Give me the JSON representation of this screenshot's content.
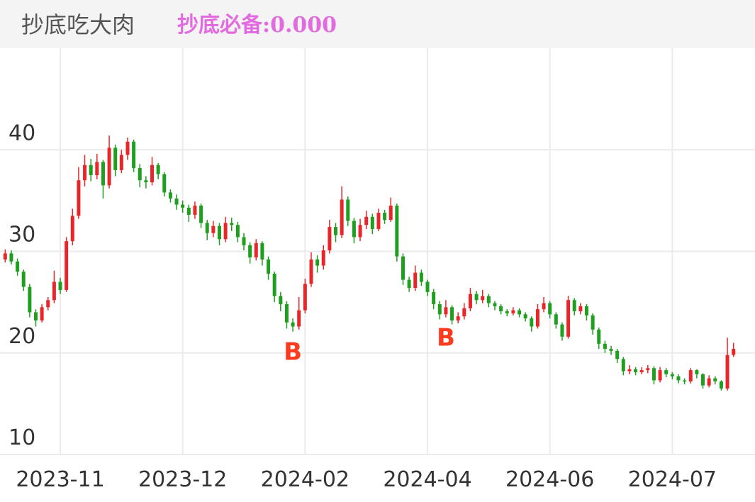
{
  "chart_data": {
    "type": "candlestick",
    "title": "抄底吃大肉",
    "indicator": "抄底必备:0.000",
    "categories": [
      null,
      null,
      null,
      null,
      null,
      null,
      null,
      null,
      null,
      "2023-11",
      null,
      null,
      null,
      null,
      null,
      null,
      null,
      null,
      null,
      null,
      null,
      null,
      null,
      null,
      null,
      null,
      null,
      null,
      null,
      "2023-12",
      null,
      null,
      null,
      null,
      null,
      null,
      null,
      null,
      null,
      null,
      null,
      null,
      null,
      null,
      null,
      null,
      null,
      null,
      null,
      "2024-02",
      null,
      null,
      null,
      null,
      null,
      null,
      null,
      null,
      null,
      null,
      null,
      null,
      null,
      null,
      null,
      null,
      null,
      null,
      null,
      "2024-04",
      null,
      null,
      null,
      null,
      null,
      null,
      null,
      null,
      null,
      null,
      null,
      null,
      null,
      null,
      null,
      null,
      null,
      null,
      null,
      "2024-06",
      null,
      null,
      null,
      null,
      null,
      null,
      null,
      null,
      null,
      null,
      null,
      null,
      null,
      null,
      null,
      null,
      null,
      null,
      null,
      "2024-07",
      null,
      null,
      null,
      null,
      null,
      null,
      null,
      null,
      null,
      null
    ],
    "open": [
      29.2,
      29.8,
      29,
      28,
      26.5,
      24,
      23.2,
      24.5,
      25.2,
      27,
      26.2,
      31,
      33.5,
      37,
      38.5,
      37.5,
      38.8,
      36.5,
      40.2,
      38,
      39.5,
      40.8,
      38.2,
      37,
      36.8,
      38.5,
      37.6,
      35.8,
      35.2,
      34.6,
      34.3,
      33.6,
      34.5,
      32.8,
      31.8,
      32.5,
      31.2,
      32.8,
      32.6,
      31.4,
      30.6,
      29.4,
      30.8,
      29.2,
      27.8,
      25.6,
      24.8,
      23,
      22.6,
      24.2,
      26.8,
      29.2,
      28.6,
      30.1,
      32.4,
      31.6,
      35.1,
      33,
      31.4,
      32.6,
      33.4,
      32.2,
      33.8,
      33.1,
      34.5,
      29.5,
      27.2,
      26.4,
      27.9,
      27,
      26,
      24.8,
      23.8,
      24.5,
      23.2,
      23.6,
      24.4,
      25.8,
      25.2,
      25.6,
      24.9,
      24.6,
      24.1,
      23.9,
      24.2,
      23.8,
      23.4,
      22.6,
      24.3,
      24.9,
      23.8,
      22.8,
      21.6,
      25.2,
      24.1,
      24.6,
      23.7,
      22.3,
      20.9,
      20.4,
      20.2,
      19.4,
      18.2,
      18.4,
      18.1,
      18.3,
      18.5,
      17.3,
      18.3,
      17.9,
      17.7,
      17.3,
      17.2,
      18.3,
      17.9,
      16.8,
      17.5,
      17.2,
      16.5,
      19.8
    ],
    "high": [
      30.2,
      30.1,
      29.3,
      28.2,
      26.8,
      24.3,
      24.8,
      25.5,
      28.1,
      27.4,
      31.4,
      34.2,
      38.3,
      39.5,
      39.1,
      39.6,
      39,
      41.4,
      40.5,
      40,
      41.2,
      41,
      38.6,
      37.4,
      39.3,
      38.7,
      37.8,
      36.1,
      35.6,
      35,
      34.6,
      34.9,
      34.7,
      33.1,
      33,
      32.8,
      33.4,
      33.3,
      32.9,
      31.8,
      30.9,
      31.2,
      31,
      29.5,
      28,
      26,
      25.1,
      23.4,
      25.5,
      27.3,
      29.9,
      29.6,
      30.6,
      33.1,
      32.8,
      36.4,
      35.4,
      33.3,
      33.2,
      34,
      33.7,
      34.2,
      34.1,
      35.3,
      34.7,
      29.8,
      27.5,
      28.6,
      28.2,
      27.2,
      26.3,
      25.1,
      25.2,
      24.7,
      24,
      24.9,
      26.4,
      26.1,
      26.2,
      25.8,
      25.1,
      24.8,
      24.3,
      24.5,
      24.4,
      24,
      23.6,
      24.8,
      25.5,
      25.1,
      24,
      23,
      25.6,
      25.4,
      24.9,
      24.8,
      23.9,
      22.5,
      21.2,
      20.7,
      20.4,
      19.6,
      18.8,
      18.6,
      18.6,
      18.8,
      18.7,
      18.6,
      18.5,
      18.1,
      17.9,
      17.5,
      18.5,
      18.4,
      18,
      17.8,
      17.7,
      17.3,
      21.5,
      21
    ],
    "low": [
      28.9,
      28.7,
      27.6,
      26.1,
      23.5,
      22.6,
      23,
      24.2,
      24.9,
      25.8,
      26,
      30.6,
      33.2,
      36.4,
      36.9,
      37.1,
      35.2,
      36.2,
      37.4,
      37.7,
      39,
      37.8,
      36.3,
      36.2,
      36.5,
      37.1,
      35.4,
      34.8,
      34.1,
      33.8,
      32.9,
      33.2,
      32.3,
      31.1,
      31.4,
      30.6,
      30.9,
      32,
      30.9,
      30.1,
      28.8,
      29.1,
      28.6,
      27.2,
      25,
      24.1,
      22.4,
      22.1,
      22.3,
      23.9,
      26.5,
      27.9,
      28.2,
      29.8,
      30.9,
      31.3,
      32.5,
      30.8,
      31,
      32.2,
      31.7,
      32,
      32.7,
      32.9,
      29,
      26.7,
      26,
      26.1,
      26.6,
      25.6,
      24.3,
      23.3,
      23.5,
      22.8,
      22.9,
      23.3,
      24.1,
      24.8,
      24.9,
      24.5,
      24.2,
      23.8,
      23.6,
      23.7,
      23.5,
      23.1,
      22.1,
      22.4,
      24,
      23.4,
      22.4,
      21.2,
      21.4,
      23.7,
      23.8,
      23.2,
      21.8,
      20.4,
      20,
      19.8,
      19,
      17.8,
      17.9,
      17.8,
      17.9,
      18,
      16.9,
      17.1,
      17.6,
      17.4,
      17,
      16.9,
      17,
      17.5,
      16.5,
      16.6,
      16.9,
      16.3,
      16.3,
      19.6
    ],
    "close": [
      29.8,
      29,
      28,
      26.5,
      24,
      23.2,
      24.5,
      25.2,
      27,
      26.2,
      31,
      33.5,
      37,
      38.5,
      37.5,
      38.8,
      36.5,
      40.2,
      38,
      39.5,
      40.8,
      38.2,
      37,
      36.8,
      38.5,
      37.6,
      35.8,
      35.2,
      34.6,
      34.3,
      33.6,
      34.5,
      32.8,
      31.8,
      32.5,
      31.2,
      32.8,
      32.6,
      31.4,
      30.6,
      29.4,
      30.8,
      29.2,
      27.8,
      25.6,
      24.8,
      23,
      22.6,
      24.2,
      26.8,
      29.2,
      28.6,
      30.1,
      32.4,
      31.6,
      35.1,
      33,
      31.4,
      32.6,
      33.4,
      32.2,
      33.8,
      33.1,
      34.5,
      29.5,
      27.2,
      26.4,
      27.9,
      27,
      26,
      24.8,
      23.8,
      24.5,
      23.2,
      23.6,
      24.4,
      25.8,
      25.2,
      25.6,
      24.9,
      24.6,
      24.1,
      23.9,
      24.2,
      23.8,
      23.4,
      22.6,
      24.3,
      24.9,
      23.8,
      22.8,
      21.6,
      25.2,
      24.1,
      24.6,
      23.7,
      22.3,
      20.9,
      20.4,
      20.2,
      19.4,
      18.2,
      18.4,
      18.1,
      18.3,
      18.5,
      17.3,
      18.3,
      17.9,
      17.7,
      17.3,
      17.2,
      18.3,
      17.9,
      16.8,
      17.5,
      17.2,
      16.5,
      19.8,
      20.4
    ],
    "signals": [
      null,
      null,
      null,
      null,
      null,
      null,
      null,
      null,
      null,
      null,
      null,
      null,
      null,
      null,
      null,
      null,
      null,
      null,
      null,
      null,
      null,
      null,
      null,
      null,
      null,
      null,
      null,
      null,
      null,
      null,
      null,
      null,
      null,
      null,
      null,
      null,
      null,
      null,
      null,
      null,
      null,
      null,
      null,
      null,
      null,
      null,
      null,
      "B",
      null,
      null,
      null,
      null,
      null,
      null,
      null,
      null,
      null,
      null,
      null,
      null,
      null,
      null,
      null,
      null,
      null,
      null,
      null,
      null,
      null,
      null,
      null,
      null,
      "B",
      null,
      null,
      null,
      null,
      null,
      null,
      null,
      null,
      null,
      null,
      null,
      null,
      null,
      null,
      null,
      null,
      null,
      null,
      null,
      null,
      null,
      null,
      null,
      null,
      null,
      null,
      null,
      null,
      null,
      null,
      null,
      null,
      null,
      null,
      null,
      null,
      null,
      null,
      null,
      null,
      null,
      null,
      null,
      null,
      null,
      null,
      null
    ],
    "up_color": "#e8262a",
    "down_color": "#1f9e1f",
    "signal_color": "#ff3b1f",
    "indicator_color": "#e26be0",
    "ylim": [
      10,
      50
    ],
    "yticks": [
      10,
      20,
      30,
      40
    ],
    "grid": true
  }
}
